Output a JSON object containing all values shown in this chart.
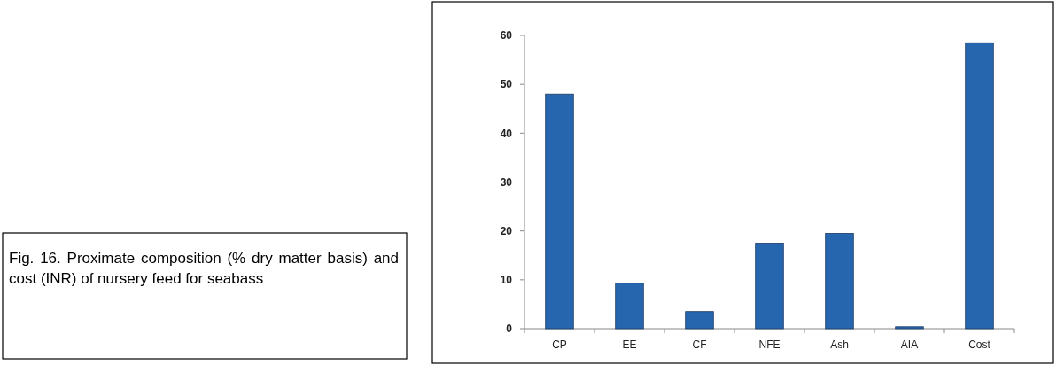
{
  "chart_data": {
    "type": "bar",
    "categories": [
      "CP",
      "EE",
      "CF",
      "NFE",
      "Ash",
      "AIA",
      "Cost"
    ],
    "values": [
      48,
      9.3,
      3.5,
      17.5,
      19.5,
      0.4,
      58.5
    ],
    "color": "#2566ae",
    "ylim": [
      0,
      60
    ],
    "yticks": [
      0,
      10,
      20,
      30,
      40,
      50,
      60
    ],
    "grid": false,
    "annotations": [
      "Fig. 16. Proximate composition (% dry matter basis) and cost (INR) of nursery feed for seabass"
    ]
  }
}
